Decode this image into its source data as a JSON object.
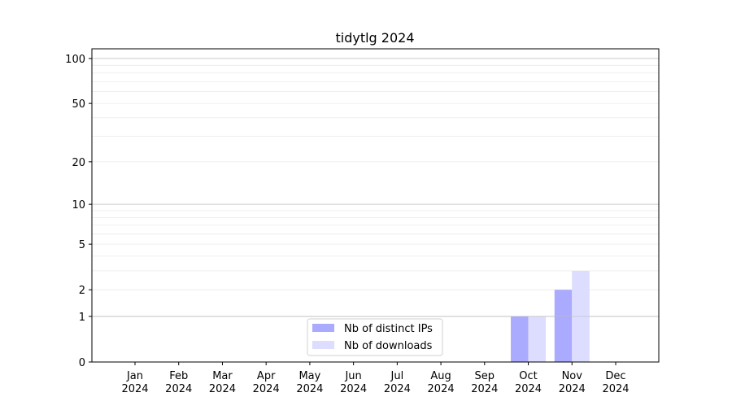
{
  "chart_data": {
    "type": "bar",
    "title": "tidytlg 2024",
    "xlabel": "",
    "ylabel": "",
    "yscale": "symlog (log10(1+y))",
    "ylim": [
      0,
      116
    ],
    "grid": true,
    "legend_position": "lower-center",
    "categories": [
      "Jan\n2024",
      "Feb\n2024",
      "Mar\n2024",
      "Apr\n2024",
      "May\n2024",
      "Jun\n2024",
      "Jul\n2024",
      "Aug\n2024",
      "Sep\n2024",
      "Oct\n2024",
      "Nov\n2024",
      "Dec\n2024"
    ],
    "category_lines": [
      [
        "Jan",
        "2024"
      ],
      [
        "Feb",
        "2024"
      ],
      [
        "Mar",
        "2024"
      ],
      [
        "Apr",
        "2024"
      ],
      [
        "May",
        "2024"
      ],
      [
        "Jun",
        "2024"
      ],
      [
        "Jul",
        "2024"
      ],
      [
        "Aug",
        "2024"
      ],
      [
        "Sep",
        "2024"
      ],
      [
        "Oct",
        "2024"
      ],
      [
        "Nov",
        "2024"
      ],
      [
        "Dec",
        "2024"
      ]
    ],
    "yticks": [
      0,
      1,
      2,
      5,
      10,
      20,
      50,
      100
    ],
    "ytick_labels": [
      "0",
      "1",
      "2",
      "5",
      "10",
      "20",
      "50",
      "100"
    ],
    "series": [
      {
        "name": "Nb of distinct IPs",
        "color": "#aaaaff",
        "values": [
          0,
          0,
          0,
          0,
          0,
          0,
          0,
          0,
          0,
          1,
          2,
          0
        ]
      },
      {
        "name": "Nb of downloads",
        "color": "#ddddff",
        "values": [
          0,
          0,
          0,
          0,
          0,
          0,
          0,
          0,
          0,
          1,
          3,
          0
        ]
      }
    ]
  }
}
